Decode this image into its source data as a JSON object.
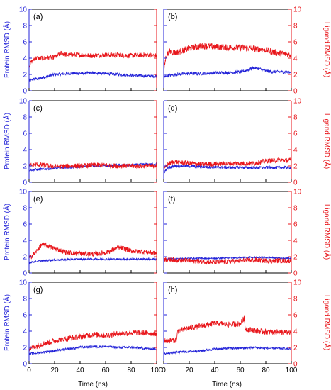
{
  "figure": {
    "left_axis_title": "Protein RMSD (Å)",
    "right_axis_title": "Ligand RMSD (Å)",
    "x_axis_title": "Time (ns)"
  },
  "chart_data": [
    {
      "type": "line",
      "panel_label": "(a)",
      "x_ticks": [
        0,
        20,
        40,
        60,
        80,
        100
      ],
      "y_ticks": [
        0,
        2,
        4,
        6,
        8,
        10
      ],
      "xlim": [
        0,
        100
      ],
      "ylim_left": [
        0,
        10
      ],
      "ylim_right": [
        0,
        10
      ],
      "colors": {
        "protein": "#2323d8",
        "ligand": "#e8161b"
      },
      "series": [
        {
          "axis": "left",
          "color": "#2323d8",
          "noise": 0.18,
          "x": [
            0,
            3,
            8,
            15,
            20,
            30,
            40,
            50,
            60,
            70,
            80,
            90,
            100
          ],
          "y": [
            1.2,
            1.4,
            1.5,
            1.8,
            2.0,
            2.1,
            2.15,
            2.2,
            2.1,
            2.0,
            1.9,
            1.8,
            1.8
          ]
        },
        {
          "axis": "right",
          "color": "#e8161b",
          "noise": 0.3,
          "x": [
            0,
            2,
            5,
            10,
            20,
            25,
            30,
            40,
            50,
            60,
            70,
            80,
            90,
            100
          ],
          "y": [
            3.0,
            3.6,
            4.0,
            4.0,
            4.1,
            4.6,
            4.4,
            4.4,
            4.3,
            4.4,
            4.4,
            4.3,
            4.4,
            4.3
          ]
        }
      ]
    },
    {
      "type": "line",
      "panel_label": "(b)",
      "x_ticks": [
        0,
        20,
        40,
        60,
        80,
        100
      ],
      "y_ticks": [
        0,
        2,
        4,
        6,
        8,
        10
      ],
      "xlim": [
        0,
        100
      ],
      "ylim_left": [
        0,
        10
      ],
      "ylim_right": [
        0,
        10
      ],
      "series": [
        {
          "axis": "left",
          "color": "#2323d8",
          "noise": 0.2,
          "x": [
            0,
            2,
            5,
            10,
            20,
            30,
            40,
            50,
            60,
            65,
            70,
            75,
            80,
            90,
            100
          ],
          "y": [
            1.6,
            1.8,
            1.9,
            2.0,
            2.1,
            2.1,
            2.2,
            2.2,
            2.3,
            2.5,
            2.8,
            2.7,
            2.4,
            2.3,
            2.3
          ]
        },
        {
          "axis": "right",
          "color": "#e8161b",
          "noise": 0.4,
          "x": [
            0,
            2,
            5,
            10,
            20,
            30,
            40,
            50,
            60,
            70,
            80,
            90,
            100
          ],
          "y": [
            2.5,
            4.4,
            4.8,
            4.7,
            5.2,
            5.5,
            5.4,
            5.3,
            5.3,
            5.2,
            5.0,
            4.6,
            4.4
          ]
        }
      ]
    },
    {
      "type": "line",
      "panel_label": "(c)",
      "x_ticks": [
        0,
        20,
        40,
        60,
        80,
        100
      ],
      "y_ticks": [
        0,
        2,
        4,
        6,
        8,
        10
      ],
      "xlim": [
        0,
        100
      ],
      "ylim_left": [
        0,
        10
      ],
      "ylim_right": [
        0,
        10
      ],
      "series": [
        {
          "axis": "left",
          "color": "#2323d8",
          "noise": 0.15,
          "x": [
            0,
            10,
            20,
            30,
            40,
            50,
            60,
            70,
            80,
            90,
            100
          ],
          "y": [
            1.5,
            1.6,
            1.7,
            1.8,
            1.9,
            2.0,
            2.0,
            2.1,
            2.1,
            2.2,
            2.2
          ]
        },
        {
          "axis": "right",
          "color": "#e8161b",
          "noise": 0.3,
          "x": [
            0,
            5,
            10,
            20,
            30,
            40,
            50,
            60,
            70,
            80,
            90,
            100
          ],
          "y": [
            2.0,
            2.2,
            2.1,
            1.9,
            2.0,
            2.0,
            2.1,
            2.1,
            2.0,
            2.0,
            2.0,
            2.0
          ]
        }
      ]
    },
    {
      "type": "line",
      "panel_label": "(d)",
      "x_ticks": [
        0,
        20,
        40,
        60,
        80,
        100
      ],
      "y_ticks": [
        0,
        2,
        4,
        6,
        8,
        10
      ],
      "xlim": [
        0,
        100
      ],
      "ylim_left": [
        0,
        10
      ],
      "ylim_right": [
        0,
        10
      ],
      "series": [
        {
          "axis": "left",
          "color": "#2323d8",
          "noise": 0.18,
          "x": [
            0,
            3,
            8,
            15,
            30,
            50,
            70,
            90,
            100
          ],
          "y": [
            1.2,
            1.7,
            2.0,
            2.0,
            1.9,
            1.8,
            1.8,
            1.8,
            1.8
          ]
        },
        {
          "axis": "right",
          "color": "#e8161b",
          "noise": 0.3,
          "x": [
            0,
            3,
            8,
            15,
            30,
            50,
            70,
            80,
            90,
            100
          ],
          "y": [
            1.5,
            2.2,
            2.5,
            2.4,
            2.2,
            2.3,
            2.3,
            2.6,
            2.7,
            2.7
          ]
        }
      ]
    },
    {
      "type": "line",
      "panel_label": "(e)",
      "x_ticks": [
        0,
        20,
        40,
        60,
        80,
        100
      ],
      "y_ticks": [
        0,
        2,
        4,
        6,
        8,
        10
      ],
      "xlim": [
        0,
        100
      ],
      "ylim_left": [
        0,
        10
      ],
      "ylim_right": [
        0,
        10
      ],
      "series": [
        {
          "axis": "left",
          "color": "#2323d8",
          "noise": 0.12,
          "x": [
            0,
            10,
            20,
            40,
            60,
            80,
            100
          ],
          "y": [
            1.3,
            1.5,
            1.6,
            1.7,
            1.7,
            1.7,
            1.7
          ]
        },
        {
          "axis": "right",
          "color": "#e8161b",
          "noise": 0.3,
          "x": [
            0,
            5,
            10,
            15,
            20,
            30,
            40,
            50,
            60,
            65,
            70,
            75,
            80,
            90,
            100
          ],
          "y": [
            1.8,
            2.5,
            3.5,
            3.3,
            3.0,
            2.5,
            2.4,
            2.3,
            2.5,
            2.8,
            3.1,
            3.0,
            2.7,
            2.6,
            2.4
          ]
        }
      ]
    },
    {
      "type": "line",
      "panel_label": "(f)",
      "x_ticks": [
        0,
        20,
        40,
        60,
        80,
        100
      ],
      "y_ticks": [
        0,
        2,
        4,
        6,
        8,
        10
      ],
      "xlim": [
        0,
        100
      ],
      "ylim_left": [
        0,
        10
      ],
      "ylim_right": [
        0,
        10
      ],
      "series": [
        {
          "axis": "left",
          "color": "#2323d8",
          "noise": 0.1,
          "x": [
            0,
            20,
            40,
            60,
            80,
            100
          ],
          "y": [
            1.7,
            1.8,
            1.8,
            1.9,
            1.9,
            1.8
          ]
        },
        {
          "axis": "right",
          "color": "#e8161b",
          "noise": 0.3,
          "x": [
            0,
            10,
            20,
            30,
            40,
            50,
            60,
            70,
            80,
            90,
            100
          ],
          "y": [
            1.7,
            1.6,
            1.5,
            1.4,
            1.3,
            1.4,
            1.5,
            1.6,
            1.5,
            1.5,
            1.5
          ]
        }
      ]
    },
    {
      "type": "line",
      "panel_label": "(g)",
      "x_ticks": [
        0,
        20,
        40,
        60,
        80,
        100
      ],
      "y_ticks": [
        0,
        2,
        4,
        6,
        8,
        10
      ],
      "xlim": [
        0,
        100
      ],
      "ylim_left": [
        0,
        10
      ],
      "ylim_right": [
        0,
        10
      ],
      "series": [
        {
          "axis": "left",
          "color": "#2323d8",
          "noise": 0.15,
          "x": [
            0,
            10,
            20,
            30,
            40,
            50,
            60,
            70,
            80,
            90,
            100
          ],
          "y": [
            1.2,
            1.4,
            1.6,
            1.8,
            2.0,
            2.1,
            2.1,
            2.0,
            2.0,
            1.9,
            1.8
          ]
        },
        {
          "axis": "right",
          "color": "#e8161b",
          "noise": 0.35,
          "x": [
            0,
            10,
            20,
            30,
            40,
            50,
            60,
            70,
            80,
            90,
            100
          ],
          "y": [
            1.8,
            2.4,
            2.8,
            3.1,
            3.3,
            3.6,
            3.5,
            3.7,
            3.8,
            3.8,
            3.7
          ]
        }
      ]
    },
    {
      "type": "line",
      "panel_label": "(h)",
      "x_ticks": [
        0,
        20,
        40,
        60,
        80,
        100
      ],
      "y_ticks": [
        0,
        2,
        4,
        6,
        8,
        10
      ],
      "xlim": [
        0,
        100
      ],
      "ylim_left": [
        0,
        10
      ],
      "ylim_right": [
        0,
        10
      ],
      "series": [
        {
          "axis": "left",
          "color": "#2323d8",
          "noise": 0.15,
          "x": [
            0,
            10,
            20,
            30,
            40,
            50,
            60,
            70,
            80,
            90,
            100
          ],
          "y": [
            1.2,
            1.4,
            1.5,
            1.6,
            1.8,
            1.9,
            1.9,
            2.0,
            1.9,
            1.9,
            1.8
          ]
        },
        {
          "axis": "right",
          "color": "#e8161b",
          "noise": 0.35,
          "x": [
            0,
            10,
            11,
            20,
            30,
            40,
            50,
            60,
            63,
            64,
            70,
            80,
            90,
            100
          ],
          "y": [
            2.8,
            2.9,
            4.0,
            4.4,
            4.6,
            5.0,
            4.8,
            4.9,
            5.6,
            4.3,
            4.1,
            3.9,
            3.9,
            3.8
          ]
        }
      ]
    }
  ]
}
